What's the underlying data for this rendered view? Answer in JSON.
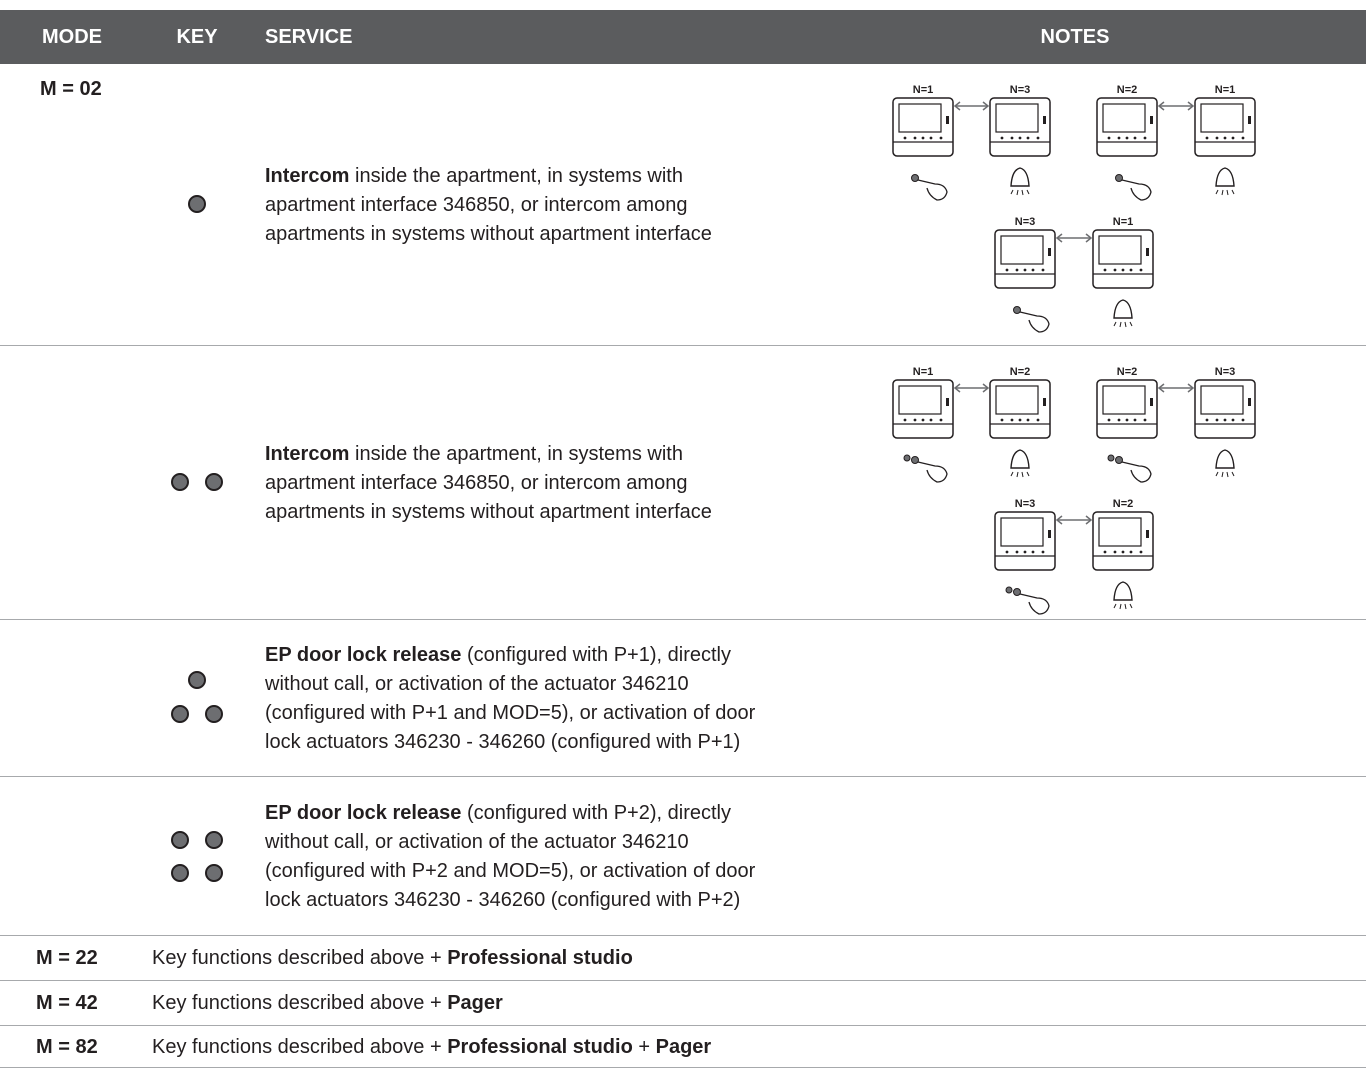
{
  "table": {
    "header": [
      "MODE",
      "KEY",
      "SERVICE",
      "NOTES"
    ],
    "rows": [
      {
        "mode": "M = 02",
        "service": [
          {
            "text": "Intercom",
            "bold": true
          },
          {
            "text": "inside the apartment, in systems with apartment interface 346850, or intercom among apartments in systems without apartment interface"
          }
        ],
        "notes": [
          {
            "left": "N=1",
            "right": "N=3"
          },
          {
            "left": "N=2",
            "right": "N=1"
          },
          {
            "left": "N=3",
            "right": "N=1"
          }
        ]
      },
      {
        "service": [
          {
            "text": "Intercom",
            "bold": true
          },
          {
            "text": "inside the apartment, in systems with apartment interface 346850, or intercom among apartments in systems without apartment interface"
          }
        ],
        "notes": [
          {
            "left": "N=1",
            "right": "N=2"
          },
          {
            "left": "N=2",
            "right": "N=3"
          },
          {
            "left": "N=3",
            "right": "N=2"
          }
        ]
      },
      {
        "service": [
          {
            "text": "EP door lock release",
            "bold": true
          },
          {
            "text": "(configured with P+1), directly without call, or activation of the actuator 346210 (configured with P+1 and MOD=5), or activation of door lock actuators 346230 - 346260 (configured with P+1)"
          }
        ]
      },
      {
        "service": [
          {
            "text": "EP door lock release",
            "bold": true
          },
          {
            "text": "(configured with P+2), directly without call, or activation of the actuator 346210 (configured with P+2 and MOD=5), or activation of door lock actuators 346230 - 346260 (configured with P+2)"
          }
        ]
      },
      {
        "mode": "M = 22",
        "service": [
          {
            "text": "Key functions described above +"
          },
          {
            "text": "Professional studio",
            "bold": true
          }
        ]
      },
      {
        "mode": "M = 42",
        "service": [
          {
            "text": "Key functions described above +"
          },
          {
            "text": "Pager",
            "bold": true
          }
        ]
      },
      {
        "mode": "M = 82",
        "service": [
          {
            "text": "Key functions described above +"
          },
          {
            "text": "Professional studio",
            "bold": true
          },
          {
            "text": "+"
          },
          {
            "text": "Pager",
            "bold": true
          }
        ]
      }
    ]
  }
}
